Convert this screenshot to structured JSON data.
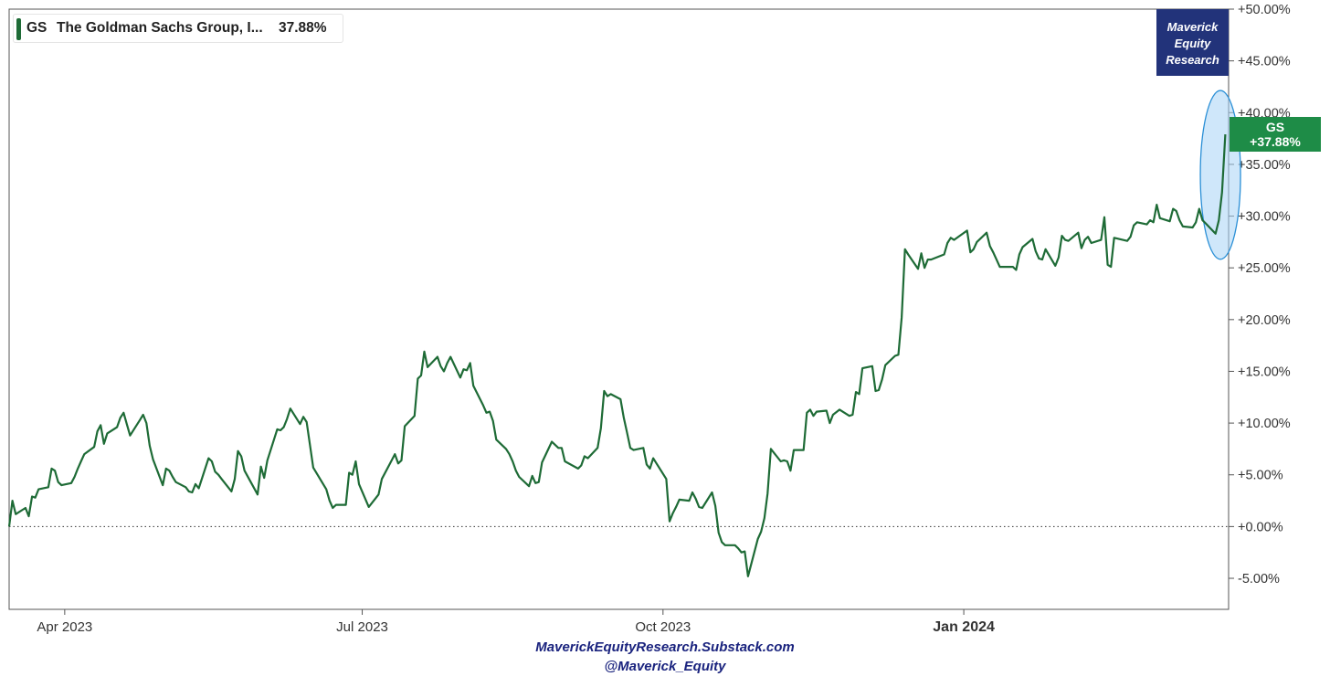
{
  "legend": {
    "symbol": "GS",
    "name": "The Goldman Sachs Group, I...",
    "value": "37.88%",
    "color": "#1e6b36"
  },
  "brand": {
    "line1": "Maverick",
    "line2": "Equity",
    "line3": "Research",
    "background": "#22337a"
  },
  "tag": {
    "symbol": "GS",
    "value": "+37.88%",
    "background": "#1e8c47"
  },
  "footer": {
    "line1": "MaverickEquityResearch.Substack.com",
    "line2": "@Maverick_Equity"
  },
  "chart_data": {
    "type": "line",
    "title": "",
    "xlabel": "",
    "ylabel": "",
    "y_axis_position": "right",
    "ylim": [
      -8,
      50
    ],
    "y_ticks": [
      -5,
      0,
      5,
      10,
      15,
      20,
      25,
      30,
      35,
      40,
      45,
      50
    ],
    "y_tick_labels": [
      "-5.00%",
      "+0.00%",
      "+5.00%",
      "+10.00%",
      "+15.00%",
      "+20.00%",
      "+25.00%",
      "+30.00%",
      "+35.00%",
      "+40.00%",
      "+45.00%",
      "+50.00%"
    ],
    "x_range": [
      "2023-03-15",
      "2024-03-22"
    ],
    "x_ticks": [
      {
        "date": "2023-04-01",
        "label": "Apr 2023",
        "bold": false
      },
      {
        "date": "2023-07-01",
        "label": "Jul 2023",
        "bold": false
      },
      {
        "date": "2023-10-01",
        "label": "Oct 2023",
        "bold": false
      },
      {
        "date": "2024-01-01",
        "label": "Jan 2024",
        "bold": true
      }
    ],
    "zero_line": "dotted",
    "grid": false,
    "highlight": "ellipse around final surge",
    "series": [
      {
        "name": "GS",
        "color": "#1e6b36",
        "points": [
          [
            "2023-03-15",
            0.0
          ],
          [
            "2023-03-16",
            2.5
          ],
          [
            "2023-03-17",
            1.2
          ],
          [
            "2023-03-20",
            1.8
          ],
          [
            "2023-03-21",
            1.0
          ],
          [
            "2023-03-22",
            2.9
          ],
          [
            "2023-03-23",
            2.8
          ],
          [
            "2023-03-24",
            3.6
          ],
          [
            "2023-03-27",
            3.8
          ],
          [
            "2023-03-28",
            5.6
          ],
          [
            "2023-03-29",
            5.4
          ],
          [
            "2023-03-30",
            4.3
          ],
          [
            "2023-03-31",
            4.0
          ],
          [
            "2023-04-03",
            4.2
          ],
          [
            "2023-04-04",
            4.8
          ],
          [
            "2023-04-05",
            5.6
          ],
          [
            "2023-04-06",
            6.3
          ],
          [
            "2023-04-07",
            7.0
          ],
          [
            "2023-04-10",
            7.7
          ],
          [
            "2023-04-11",
            9.2
          ],
          [
            "2023-04-12",
            9.8
          ],
          [
            "2023-04-13",
            8.0
          ],
          [
            "2023-04-14",
            9.0
          ],
          [
            "2023-04-17",
            9.6
          ],
          [
            "2023-04-18",
            10.5
          ],
          [
            "2023-04-19",
            11.0
          ],
          [
            "2023-04-20",
            9.9
          ],
          [
            "2023-04-21",
            8.8
          ],
          [
            "2023-04-24",
            10.3
          ],
          [
            "2023-04-25",
            10.8
          ],
          [
            "2023-04-26",
            10.0
          ],
          [
            "2023-04-27",
            7.8
          ],
          [
            "2023-04-28",
            6.5
          ],
          [
            "2023-05-01",
            4.0
          ],
          [
            "2023-05-02",
            5.6
          ],
          [
            "2023-05-03",
            5.4
          ],
          [
            "2023-05-04",
            4.8
          ],
          [
            "2023-05-05",
            4.3
          ],
          [
            "2023-05-08",
            3.8
          ],
          [
            "2023-05-09",
            3.4
          ],
          [
            "2023-05-10",
            3.3
          ],
          [
            "2023-05-11",
            4.1
          ],
          [
            "2023-05-12",
            3.7
          ],
          [
            "2023-05-15",
            6.6
          ],
          [
            "2023-05-16",
            6.3
          ],
          [
            "2023-05-17",
            5.3
          ],
          [
            "2023-05-18",
            5.0
          ],
          [
            "2023-05-19",
            4.6
          ],
          [
            "2023-05-22",
            3.4
          ],
          [
            "2023-05-23",
            4.6
          ],
          [
            "2023-05-24",
            7.3
          ],
          [
            "2023-05-25",
            6.8
          ],
          [
            "2023-05-26",
            5.4
          ],
          [
            "2023-05-30",
            3.1
          ],
          [
            "2023-05-31",
            5.8
          ],
          [
            "2023-06-01",
            4.7
          ],
          [
            "2023-06-02",
            6.4
          ],
          [
            "2023-06-05",
            9.4
          ],
          [
            "2023-06-06",
            9.3
          ],
          [
            "2023-06-07",
            9.6
          ],
          [
            "2023-06-08",
            10.4
          ],
          [
            "2023-06-09",
            11.4
          ],
          [
            "2023-06-12",
            9.9
          ],
          [
            "2023-06-13",
            10.6
          ],
          [
            "2023-06-14",
            10.1
          ],
          [
            "2023-06-15",
            7.9
          ],
          [
            "2023-06-16",
            5.7
          ],
          [
            "2023-06-20",
            3.6
          ],
          [
            "2023-06-21",
            2.5
          ],
          [
            "2023-06-22",
            1.8
          ],
          [
            "2023-06-23",
            2.1
          ],
          [
            "2023-06-26",
            2.1
          ],
          [
            "2023-06-27",
            5.2
          ],
          [
            "2023-06-28",
            5.0
          ],
          [
            "2023-06-29",
            6.3
          ],
          [
            "2023-06-30",
            4.1
          ],
          [
            "2023-07-03",
            1.9
          ],
          [
            "2023-07-05",
            2.7
          ],
          [
            "2023-07-06",
            3.1
          ],
          [
            "2023-07-07",
            4.6
          ],
          [
            "2023-07-10",
            6.4
          ],
          [
            "2023-07-11",
            7.0
          ],
          [
            "2023-07-12",
            6.1
          ],
          [
            "2023-07-13",
            6.4
          ],
          [
            "2023-07-14",
            9.7
          ],
          [
            "2023-07-17",
            10.7
          ],
          [
            "2023-07-18",
            14.3
          ],
          [
            "2023-07-19",
            14.6
          ],
          [
            "2023-07-20",
            16.9
          ],
          [
            "2023-07-21",
            15.4
          ],
          [
            "2023-07-24",
            16.4
          ],
          [
            "2023-07-25",
            15.5
          ],
          [
            "2023-07-26",
            15.0
          ],
          [
            "2023-07-27",
            15.8
          ],
          [
            "2023-07-28",
            16.4
          ],
          [
            "2023-07-31",
            14.4
          ],
          [
            "2023-08-01",
            15.2
          ],
          [
            "2023-08-02",
            15.1
          ],
          [
            "2023-08-03",
            15.8
          ],
          [
            "2023-08-04",
            13.6
          ],
          [
            "2023-08-07",
            11.7
          ],
          [
            "2023-08-08",
            11.0
          ],
          [
            "2023-08-09",
            11.1
          ],
          [
            "2023-08-10",
            10.2
          ],
          [
            "2023-08-11",
            8.4
          ],
          [
            "2023-08-14",
            7.5
          ],
          [
            "2023-08-15",
            7.0
          ],
          [
            "2023-08-16",
            6.3
          ],
          [
            "2023-08-17",
            5.4
          ],
          [
            "2023-08-18",
            4.8
          ],
          [
            "2023-08-21",
            3.9
          ],
          [
            "2023-08-22",
            4.9
          ],
          [
            "2023-08-23",
            4.2
          ],
          [
            "2023-08-24",
            4.3
          ],
          [
            "2023-08-25",
            6.2
          ],
          [
            "2023-08-28",
            8.2
          ],
          [
            "2023-08-29",
            7.9
          ],
          [
            "2023-08-30",
            7.6
          ],
          [
            "2023-08-31",
            7.6
          ],
          [
            "2023-09-01",
            6.3
          ],
          [
            "2023-09-05",
            5.6
          ],
          [
            "2023-09-06",
            5.9
          ],
          [
            "2023-09-07",
            6.8
          ],
          [
            "2023-09-08",
            6.6
          ],
          [
            "2023-09-11",
            7.6
          ],
          [
            "2023-09-12",
            9.5
          ],
          [
            "2023-09-13",
            13.1
          ],
          [
            "2023-09-14",
            12.6
          ],
          [
            "2023-09-15",
            12.8
          ],
          [
            "2023-09-18",
            12.3
          ],
          [
            "2023-09-19",
            10.5
          ],
          [
            "2023-09-20",
            9.1
          ],
          [
            "2023-09-21",
            7.6
          ],
          [
            "2023-09-22",
            7.4
          ],
          [
            "2023-09-25",
            7.6
          ],
          [
            "2023-09-26",
            6.0
          ],
          [
            "2023-09-27",
            5.6
          ],
          [
            "2023-09-28",
            6.6
          ],
          [
            "2023-09-29",
            6.1
          ],
          [
            "2023-10-02",
            4.6
          ],
          [
            "2023-10-03",
            0.5
          ],
          [
            "2023-10-04",
            1.3
          ],
          [
            "2023-10-05",
            1.9
          ],
          [
            "2023-10-06",
            2.6
          ],
          [
            "2023-10-09",
            2.5
          ],
          [
            "2023-10-10",
            3.3
          ],
          [
            "2023-10-11",
            2.7
          ],
          [
            "2023-10-12",
            1.9
          ],
          [
            "2023-10-13",
            1.8
          ],
          [
            "2023-10-16",
            3.3
          ],
          [
            "2023-10-17",
            2.0
          ],
          [
            "2023-10-18",
            -0.6
          ],
          [
            "2023-10-19",
            -1.5
          ],
          [
            "2023-10-20",
            -1.8
          ],
          [
            "2023-10-23",
            -1.8
          ],
          [
            "2023-10-24",
            -2.1
          ],
          [
            "2023-10-25",
            -2.5
          ],
          [
            "2023-10-26",
            -2.4
          ],
          [
            "2023-10-27",
            -4.8
          ],
          [
            "2023-10-30",
            -1.2
          ],
          [
            "2023-10-31",
            -0.5
          ],
          [
            "2023-11-01",
            0.8
          ],
          [
            "2023-11-02",
            3.2
          ],
          [
            "2023-11-03",
            7.5
          ],
          [
            "2023-11-06",
            6.3
          ],
          [
            "2023-11-07",
            6.4
          ],
          [
            "2023-11-08",
            6.3
          ],
          [
            "2023-11-09",
            5.4
          ],
          [
            "2023-11-10",
            7.4
          ],
          [
            "2023-11-13",
            7.4
          ],
          [
            "2023-11-14",
            11.0
          ],
          [
            "2023-11-15",
            11.3
          ],
          [
            "2023-11-16",
            10.7
          ],
          [
            "2023-11-17",
            11.1
          ],
          [
            "2023-11-20",
            11.2
          ],
          [
            "2023-11-21",
            10.0
          ],
          [
            "2023-11-22",
            10.8
          ],
          [
            "2023-11-24",
            11.3
          ],
          [
            "2023-11-27",
            10.7
          ],
          [
            "2023-11-28",
            10.8
          ],
          [
            "2023-11-29",
            13.0
          ],
          [
            "2023-11-30",
            12.8
          ],
          [
            "2023-12-01",
            15.3
          ],
          [
            "2023-12-04",
            15.5
          ],
          [
            "2023-12-05",
            13.1
          ],
          [
            "2023-12-06",
            13.2
          ],
          [
            "2023-12-07",
            14.2
          ],
          [
            "2023-12-08",
            15.6
          ],
          [
            "2023-12-11",
            16.5
          ],
          [
            "2023-12-12",
            16.6
          ],
          [
            "2023-12-13",
            20.2
          ],
          [
            "2023-12-14",
            26.8
          ],
          [
            "2023-12-15",
            26.3
          ],
          [
            "2023-12-18",
            24.9
          ],
          [
            "2023-12-19",
            26.4
          ],
          [
            "2023-12-20",
            25.0
          ],
          [
            "2023-12-21",
            25.8
          ],
          [
            "2023-12-22",
            25.8
          ],
          [
            "2023-12-26",
            26.3
          ],
          [
            "2023-12-27",
            27.4
          ],
          [
            "2023-12-28",
            27.9
          ],
          [
            "2023-12-29",
            27.7
          ],
          [
            "2024-01-02",
            28.6
          ],
          [
            "2024-01-03",
            26.5
          ],
          [
            "2024-01-04",
            26.8
          ],
          [
            "2024-01-05",
            27.5
          ],
          [
            "2024-01-08",
            28.4
          ],
          [
            "2024-01-09",
            27.1
          ],
          [
            "2024-01-10",
            26.5
          ],
          [
            "2024-01-11",
            25.8
          ],
          [
            "2024-01-12",
            25.1
          ],
          [
            "2024-01-16",
            25.1
          ],
          [
            "2024-01-17",
            24.8
          ],
          [
            "2024-01-18",
            26.3
          ],
          [
            "2024-01-19",
            27.0
          ],
          [
            "2024-01-22",
            27.8
          ],
          [
            "2024-01-23",
            26.6
          ],
          [
            "2024-01-24",
            25.9
          ],
          [
            "2024-01-25",
            25.8
          ],
          [
            "2024-01-26",
            26.8
          ],
          [
            "2024-01-29",
            25.2
          ],
          [
            "2024-01-30",
            26.0
          ],
          [
            "2024-01-31",
            28.1
          ],
          [
            "2024-02-01",
            27.7
          ],
          [
            "2024-02-02",
            27.6
          ],
          [
            "2024-02-05",
            28.4
          ],
          [
            "2024-02-06",
            26.9
          ],
          [
            "2024-02-07",
            27.7
          ],
          [
            "2024-02-08",
            28.0
          ],
          [
            "2024-02-09",
            27.4
          ],
          [
            "2024-02-12",
            27.7
          ],
          [
            "2024-02-13",
            29.9
          ],
          [
            "2024-02-14",
            25.3
          ],
          [
            "2024-02-15",
            25.1
          ],
          [
            "2024-02-16",
            27.9
          ],
          [
            "2024-02-20",
            27.6
          ],
          [
            "2024-02-21",
            28.0
          ],
          [
            "2024-02-22",
            29.1
          ],
          [
            "2024-02-23",
            29.4
          ],
          [
            "2024-02-26",
            29.2
          ],
          [
            "2024-02-27",
            29.6
          ],
          [
            "2024-02-28",
            29.4
          ],
          [
            "2024-02-29",
            31.1
          ],
          [
            "2024-03-01",
            29.8
          ],
          [
            "2024-03-04",
            29.5
          ],
          [
            "2024-03-05",
            30.7
          ],
          [
            "2024-03-06",
            30.5
          ],
          [
            "2024-03-07",
            29.6
          ],
          [
            "2024-03-08",
            29.0
          ],
          [
            "2024-03-11",
            28.9
          ],
          [
            "2024-03-12",
            29.4
          ],
          [
            "2024-03-13",
            30.7
          ],
          [
            "2024-03-14",
            29.6
          ],
          [
            "2024-03-15",
            29.3
          ],
          [
            "2024-03-18",
            28.3
          ],
          [
            "2024-03-19",
            29.6
          ],
          [
            "2024-03-20",
            32.3
          ],
          [
            "2024-03-21",
            37.9
          ]
        ]
      }
    ]
  }
}
